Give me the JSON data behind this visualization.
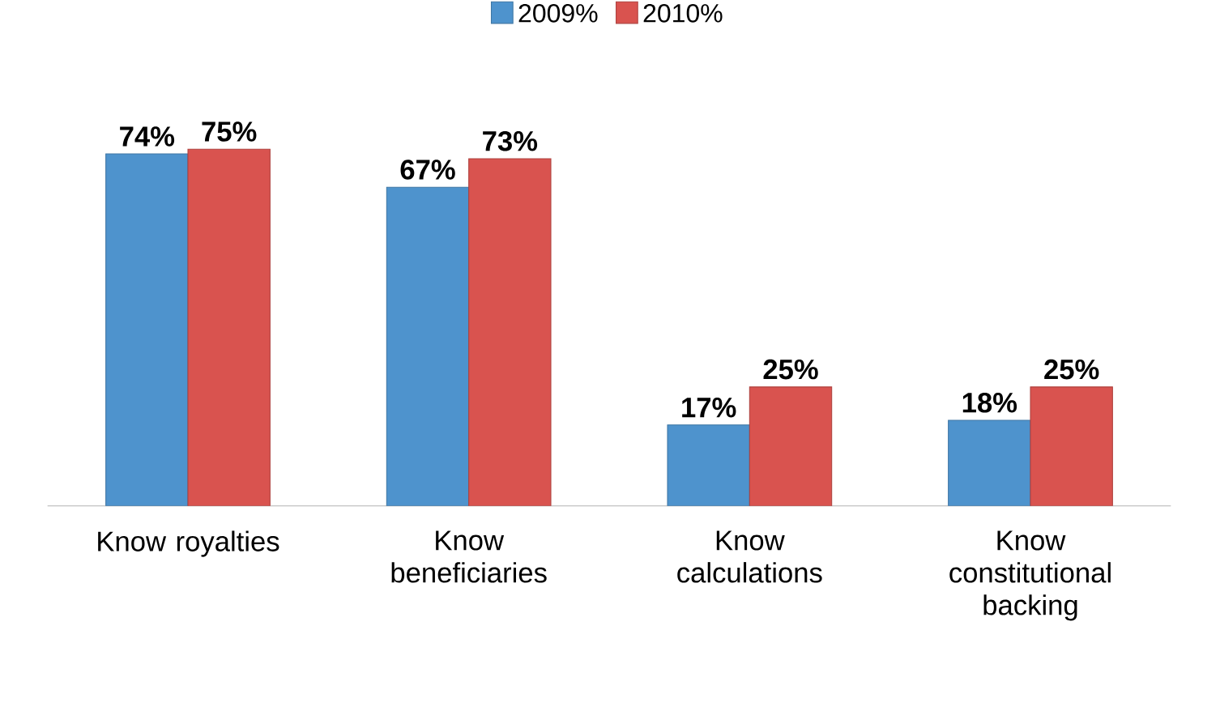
{
  "chart_data": {
    "type": "bar",
    "categories": [
      "Know royalties",
      "Know beneficiaries",
      "Know calculations",
      "Know constitutional backing"
    ],
    "series": [
      {
        "name": "2009%",
        "color": "#4e93cd",
        "values": [
          74,
          67,
          17,
          18
        ],
        "value_labels": [
          "74%",
          "67%",
          "17%",
          "18%"
        ]
      },
      {
        "name": "2010%",
        "color": "#d9534f",
        "values": [
          75,
          73,
          25,
          25
        ],
        "value_labels": [
          "75%",
          "73%",
          "25%",
          "25%"
        ]
      }
    ],
    "legend": "top"
  }
}
